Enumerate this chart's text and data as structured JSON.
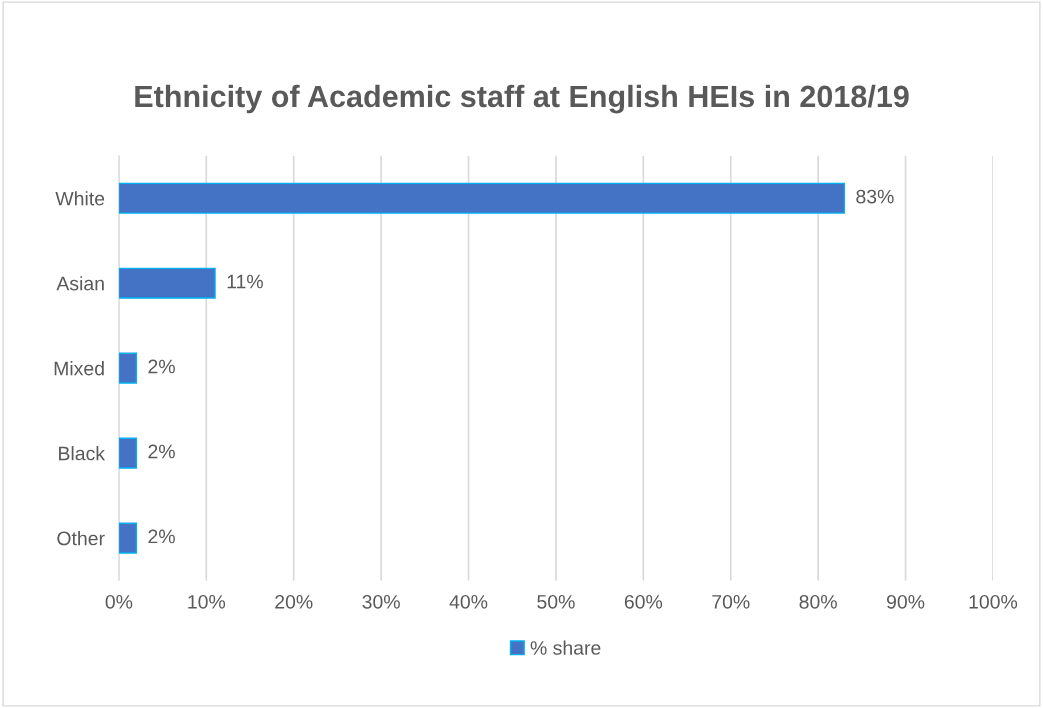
{
  "chart_data": {
    "type": "bar",
    "orientation": "horizontal",
    "title": "Ethnicity of Academic staff at English HEIs in 2018/19",
    "categories": [
      "White",
      "Asian",
      "Mixed",
      "Black",
      "Other"
    ],
    "series": [
      {
        "name": "% share",
        "color": "#4472c4",
        "values": [
          83,
          11,
          2,
          2,
          2
        ],
        "value_labels": [
          "83%",
          "11%",
          "2%",
          "2%",
          "2%"
        ]
      }
    ],
    "xlim": [
      0,
      100
    ],
    "xticks": [
      {
        "value": 0,
        "label": "0%"
      },
      {
        "value": 10,
        "label": "10%"
      },
      {
        "value": 20,
        "label": "20%"
      },
      {
        "value": 30,
        "label": "30%"
      },
      {
        "value": 40,
        "label": "40%"
      },
      {
        "value": 50,
        "label": "50%"
      },
      {
        "value": 60,
        "label": "60%"
      },
      {
        "value": 70,
        "label": "70%"
      },
      {
        "value": 80,
        "label": "80%"
      },
      {
        "value": 90,
        "label": "90%"
      },
      {
        "value": 100,
        "label": "100%"
      }
    ],
    "grid": "x",
    "legend": "bottom"
  }
}
